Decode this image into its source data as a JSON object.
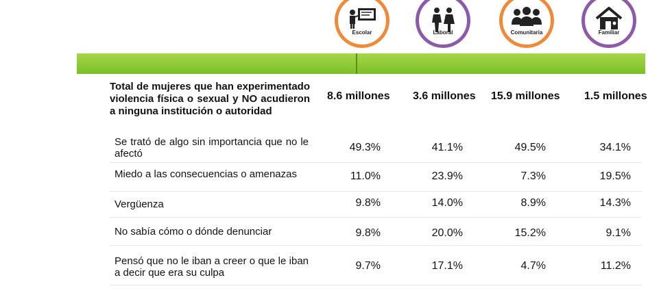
{
  "icons": [
    {
      "name": "escolar-icon",
      "label": "Escolar",
      "color": "#ef8a3a"
    },
    {
      "name": "laboral-icon",
      "label": "Laboral",
      "color": "#8c5aa8"
    },
    {
      "name": "comunitaria-icon",
      "label": "Comunitaria",
      "color": "#ef8a3a"
    },
    {
      "name": "familiar-icon",
      "label": "Familiar",
      "color": "#8c5aa8"
    }
  ],
  "header": {
    "label": "Total de mujeres que han experimentado violencia física o sexual y NO acudieron a ninguna institución o autoridad",
    "values": [
      "8.6 millones",
      "3.6 millones",
      "15.9 millones",
      "1.5 millones"
    ]
  },
  "rows": [
    {
      "label": "Se trató de algo sin importancia que no le afectó",
      "values": [
        "49.3%",
        "41.1%",
        "49.5%",
        "34.1%"
      ]
    },
    {
      "label": "Miedo a las consecuencias o amenazas",
      "values": [
        "11.0%",
        "23.9%",
        "7.3%",
        "19.5%"
      ]
    },
    {
      "label": "Vergüenza",
      "values": [
        "9.8%",
        "14.0%",
        "8.9%",
        "14.3%"
      ]
    },
    {
      "label": "No sabía cómo o dónde denunciar",
      "values": [
        "9.8%",
        "20.0%",
        "15.2%",
        "9.1%"
      ]
    },
    {
      "label": "Pensó que no le iban a creer o que le iban a decir que era su culpa",
      "values": [
        "9.7%",
        "17.1%",
        "4.7%",
        "11.2%"
      ]
    }
  ],
  "colors": {
    "bar_green": "#8cc63f",
    "orange": "#ef8a3a",
    "purple": "#8c5aa8"
  }
}
